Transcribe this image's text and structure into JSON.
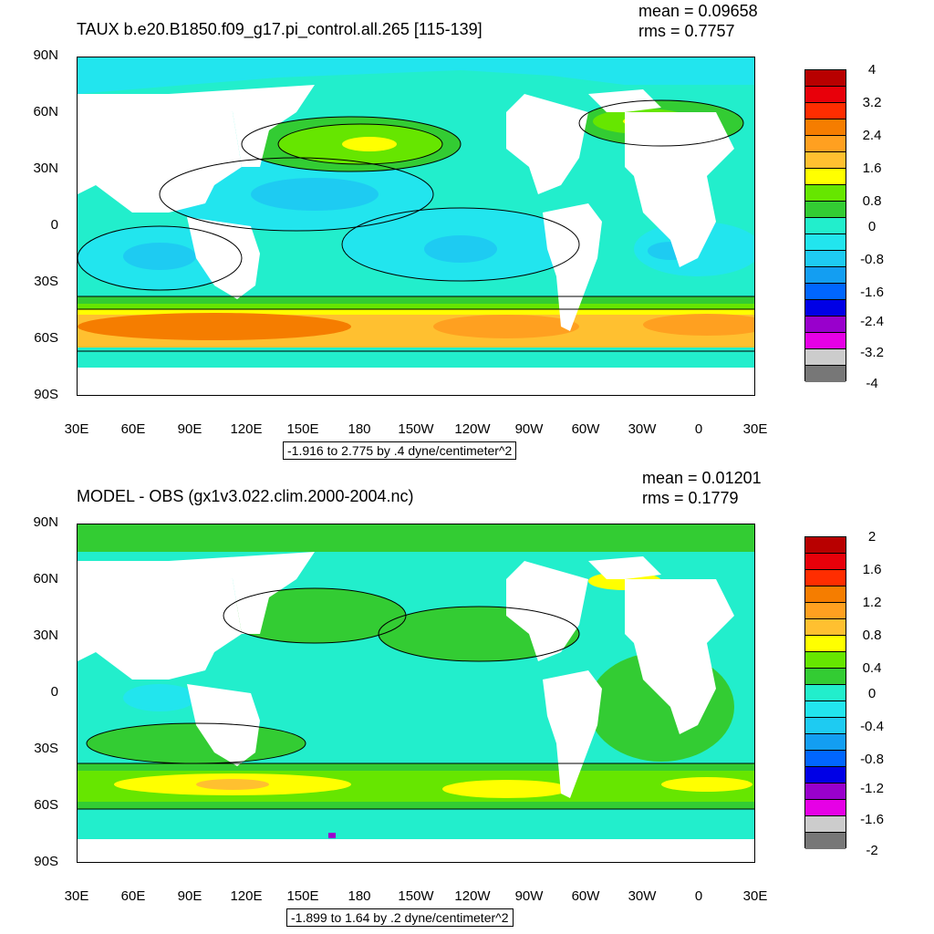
{
  "colors": {
    "pos4": "#b80000",
    "pos3": "#e8000a",
    "pos2b": "#ff2d00",
    "pos2": "#f57d00",
    "pos1b": "#ffa020",
    "pos1": "#ffc030",
    "yellow": "#ffff00",
    "lime": "#66e600",
    "green": "#33cc33",
    "cyan_lt": "#22eecc",
    "cyan": "#22e5ee",
    "sky": "#1ecbf2",
    "blue_lt": "#139ef2",
    "blue": "#0066ff",
    "navy": "#0000e6",
    "purple": "#9900cc",
    "magenta": "#e600e6",
    "gray_lt": "#cccccc",
    "gray": "#777777"
  },
  "panels": [
    {
      "title": "TAUX b.e20.B1850.f09_g17.pi_control.all.265 [115-139]",
      "mean": "mean = 0.09658",
      "rms": "rms = 0.7757",
      "info": "-1.916 to 2.775 by .4 dyne/centimeter^2",
      "colorbar_labels": [
        "4",
        "3.2",
        "2.4",
        "1.6",
        "0.8",
        "0",
        "-0.8",
        "-1.6",
        "-2.4",
        "-3.2",
        "-4"
      ]
    },
    {
      "title": "MODEL - OBS (gx1v3.022.clim.2000-2004.nc)",
      "mean": "mean = 0.01201",
      "rms": "rms = 0.1779",
      "info": "-1.899 to 1.64 by .2 dyne/centimeter^2",
      "colorbar_labels": [
        "2",
        "1.6",
        "1.2",
        "0.8",
        "0.4",
        "0",
        "-0.4",
        "-0.8",
        "-1.2",
        "-1.6",
        "-2"
      ]
    }
  ],
  "lat_labels": [
    "90N",
    "60N",
    "30N",
    "0",
    "30S",
    "60S",
    "90S"
  ],
  "lon_labels": [
    "30E",
    "60E",
    "90E",
    "120E",
    "150E",
    "180",
    "150W",
    "120W",
    "90W",
    "60W",
    "30W",
    "0",
    "30E"
  ]
}
